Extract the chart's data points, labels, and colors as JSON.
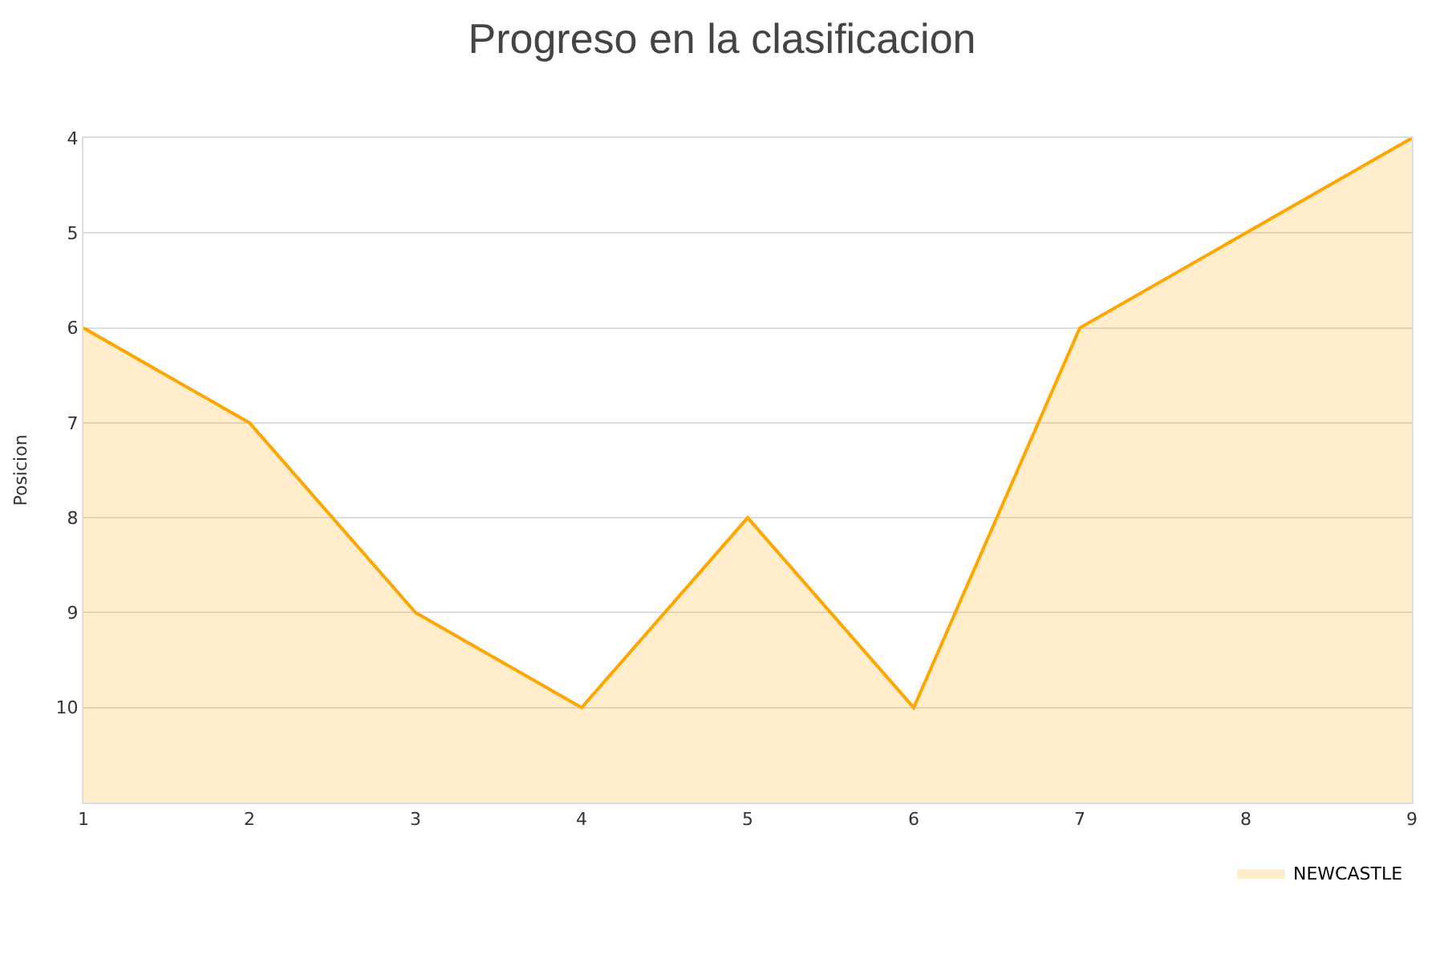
{
  "chart_data": {
    "type": "line",
    "title": "Progreso en la clasificacion",
    "ylabel": "Posicion",
    "x": [
      1,
      2,
      3,
      4,
      5,
      6,
      7,
      8,
      9
    ],
    "series": [
      {
        "name": "NEWCASTLE",
        "color": "#ffa500",
        "values": [
          6,
          7,
          9,
          10,
          8,
          10,
          6,
          5,
          4
        ],
        "lower": [
          11,
          11,
          11,
          11,
          11,
          11,
          11,
          11,
          11
        ],
        "upper": [
          6,
          7,
          9,
          10,
          8,
          10,
          6,
          5,
          4
        ]
      }
    ],
    "xlim": [
      1,
      9
    ],
    "xticks": [
      1,
      2,
      3,
      4,
      5,
      6,
      7,
      8,
      9
    ],
    "ylim": [
      11,
      4
    ],
    "yticks": [
      4,
      5,
      6,
      7,
      8,
      9,
      10,
      {
        "value": 11,
        "label": null
      }
    ],
    "grid": "y",
    "legend": "bottom right",
    "marker": "none",
    "line_style": "solid"
  }
}
